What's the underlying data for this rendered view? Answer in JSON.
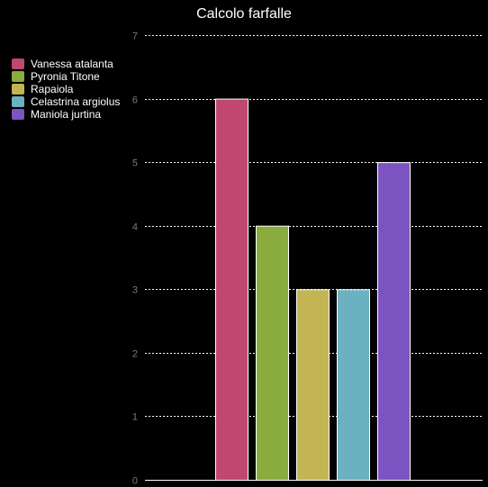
{
  "chart_data": {
    "type": "bar",
    "title": "Calcolo farfalle",
    "categories": [
      "Vanessa atalanta",
      "Pyronia Titone",
      "Rapaiola",
      "Celastrina argiolus",
      "Maniola jurtina"
    ],
    "values": [
      6,
      4,
      3,
      3,
      5
    ],
    "colors": [
      "#c0476f",
      "#8aab3e",
      "#c4b554",
      "#6bb1c1",
      "#7b54c1"
    ],
    "ylim": [
      0,
      7
    ],
    "yticks": [
      "0",
      "1",
      "2",
      "3",
      "4",
      "5",
      "6",
      "7"
    ],
    "grid": true,
    "gridline_style": "dashed",
    "legend_position": "top-left",
    "background": "#000000"
  }
}
